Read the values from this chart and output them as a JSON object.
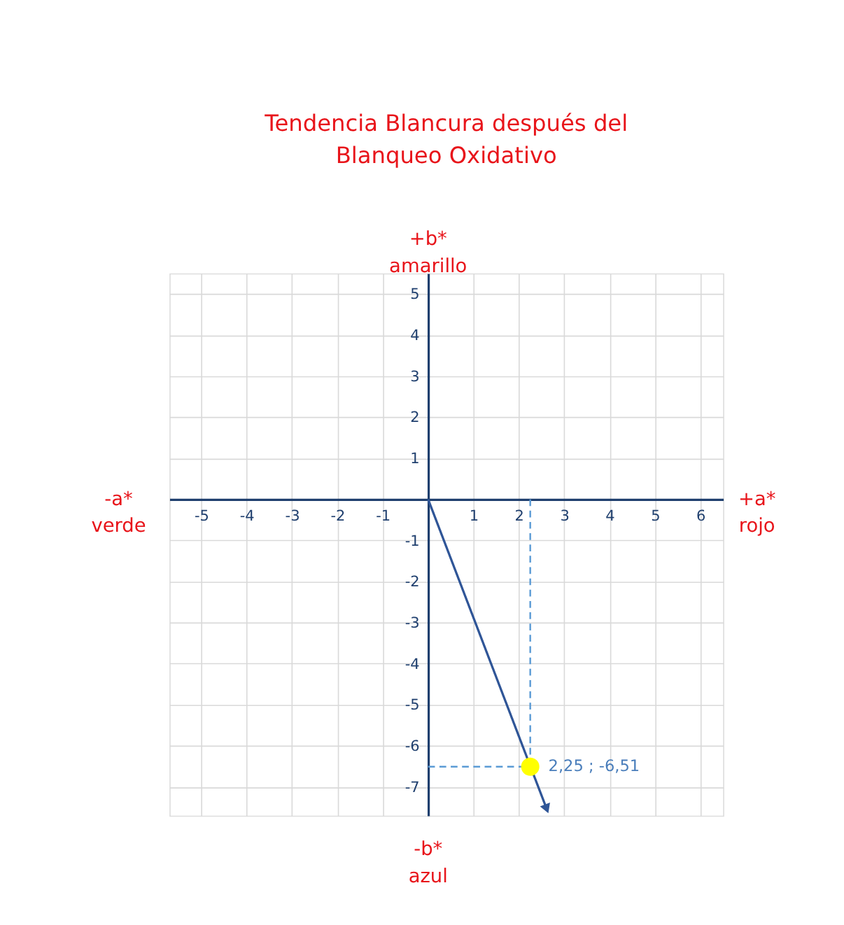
{
  "chart_data": {
    "type": "scatter",
    "title": "Tendencia Blancura después del\nBlanqueo Oxidativo",
    "xlabel": "+a*\nrojo",
    "ylabel": "+b*\namarillo",
    "annotations": [
      "-a*\nverde",
      "-b*\nazul",
      {
        "text": "2,25 ; -6,51",
        "x": 2.25,
        "y": -6.51
      }
    ],
    "series": [
      {
        "type": "line",
        "x": [
          0,
          2.6
        ],
        "values": [
          0,
          -7.5
        ],
        "color": "#2f5597",
        "marker": "triangle"
      },
      {
        "x": [
          2.25
        ],
        "values": [
          -6.51
        ],
        "color": "#ffff00",
        "marker": "circle"
      }
    ],
    "ref_lines": [
      {
        "axis": "x",
        "value": 2.25,
        "color": "#5b9bd5",
        "line_style": "dashed"
      },
      {
        "axis": "y",
        "value": -6.51,
        "color": "#5b9bd5",
        "line_style": "dashed"
      }
    ],
    "xlim": [
      -5.7,
      6.5
    ],
    "ylim": [
      -7.7,
      5.5
    ],
    "xticks": [
      -5,
      -4,
      -3,
      -2,
      -1,
      1,
      2,
      3,
      4,
      5,
      6
    ],
    "yticks": [
      -7,
      -6,
      -5,
      -4,
      -3,
      -2,
      -1,
      1,
      2,
      3,
      4,
      5
    ],
    "grid": true
  }
}
